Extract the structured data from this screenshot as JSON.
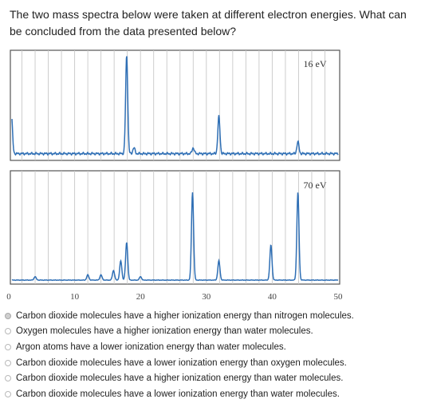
{
  "question": {
    "text": "The two mass spectra below were taken at different electron energies. What can be concluded from the data presented below?"
  },
  "chart_data": [
    {
      "type": "line",
      "title": "16 eV",
      "xlim": [
        0,
        50
      ],
      "xticks": [
        "0",
        "10",
        "20",
        "30",
        "40",
        "50"
      ],
      "grid": true,
      "baseline": 2,
      "peaks": [
        {
          "x": 0.4,
          "y": 40
        },
        {
          "x": 17.9,
          "y": 100
        },
        {
          "x": 19.0,
          "y": 6
        },
        {
          "x": 28.0,
          "y": 6
        },
        {
          "x": 31.9,
          "y": 38
        },
        {
          "x": 43.9,
          "y": 12
        }
      ]
    },
    {
      "type": "line",
      "title": "70 eV",
      "xlim": [
        0,
        50
      ],
      "xticks": [
        "0",
        "10",
        "20",
        "30",
        "40",
        "50"
      ],
      "grid": true,
      "baseline": 0,
      "peaks": [
        {
          "x": 4.0,
          "y": 4
        },
        {
          "x": 12.0,
          "y": 6
        },
        {
          "x": 14.0,
          "y": 6
        },
        {
          "x": 15.9,
          "y": 11
        },
        {
          "x": 17.0,
          "y": 22
        },
        {
          "x": 17.9,
          "y": 43
        },
        {
          "x": 20.0,
          "y": 4
        },
        {
          "x": 27.9,
          "y": 100
        },
        {
          "x": 31.9,
          "y": 22
        },
        {
          "x": 39.8,
          "y": 40
        },
        {
          "x": 43.9,
          "y": 100
        }
      ]
    }
  ],
  "options": [
    {
      "label": "Carbon dioxide molecules have a higher ionization energy than nitrogen molecules.",
      "selected": true
    },
    {
      "label": "Oxygen molecules have a higher ionization energy than water molecules.",
      "selected": false
    },
    {
      "label": "Argon atoms have a lower ionization energy than water molecules.",
      "selected": false
    },
    {
      "label": "Carbon dioxide molecules have a lower ionization energy than oxygen molecules.",
      "selected": false
    },
    {
      "label": "Carbon dioxide molecules have a higher ionization energy than water molecules.",
      "selected": false
    },
    {
      "label": "Carbon dioxide molecules have a lower ionization energy than water molecules.",
      "selected": false
    }
  ]
}
